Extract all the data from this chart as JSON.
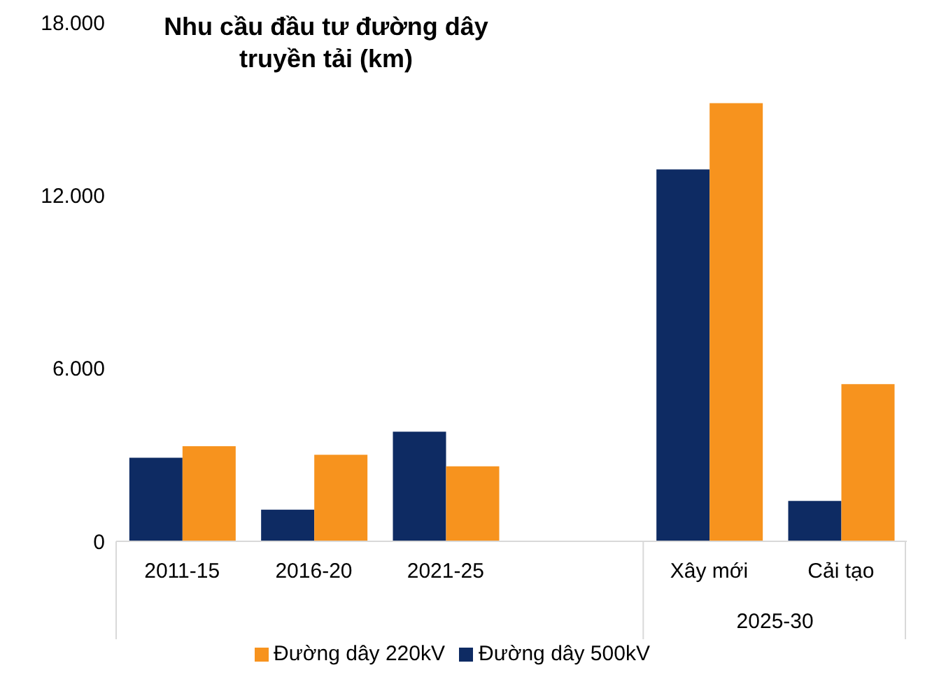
{
  "chart_data": {
    "type": "bar",
    "title": "Nhu cầu đầu tư đường dây truyền tải (km)",
    "categories": [
      "2011-15",
      "2016-20",
      "2021-25",
      null,
      "Xây mới",
      "Cải tạo"
    ],
    "series": [
      {
        "name": "Đường dây 500kV",
        "color": "#0e2b63",
        "values": [
          2900,
          1100,
          3800,
          null,
          12900,
          1400
        ]
      },
      {
        "name": "Đường dây 220kV",
        "color": "#f7931e",
        "values": [
          3300,
          3000,
          2600,
          null,
          15200,
          5450
        ]
      }
    ],
    "ylim": [
      0,
      18000
    ],
    "yticks": [
      {
        "value": 0,
        "label": "0"
      },
      {
        "value": 6000,
        "label": "6.000"
      },
      {
        "value": 12000,
        "label": "12.000"
      },
      {
        "value": 18000,
        "label": "18.000"
      }
    ],
    "annotations": [
      "2025-30"
    ],
    "grid": false,
    "legend": "bottom"
  }
}
